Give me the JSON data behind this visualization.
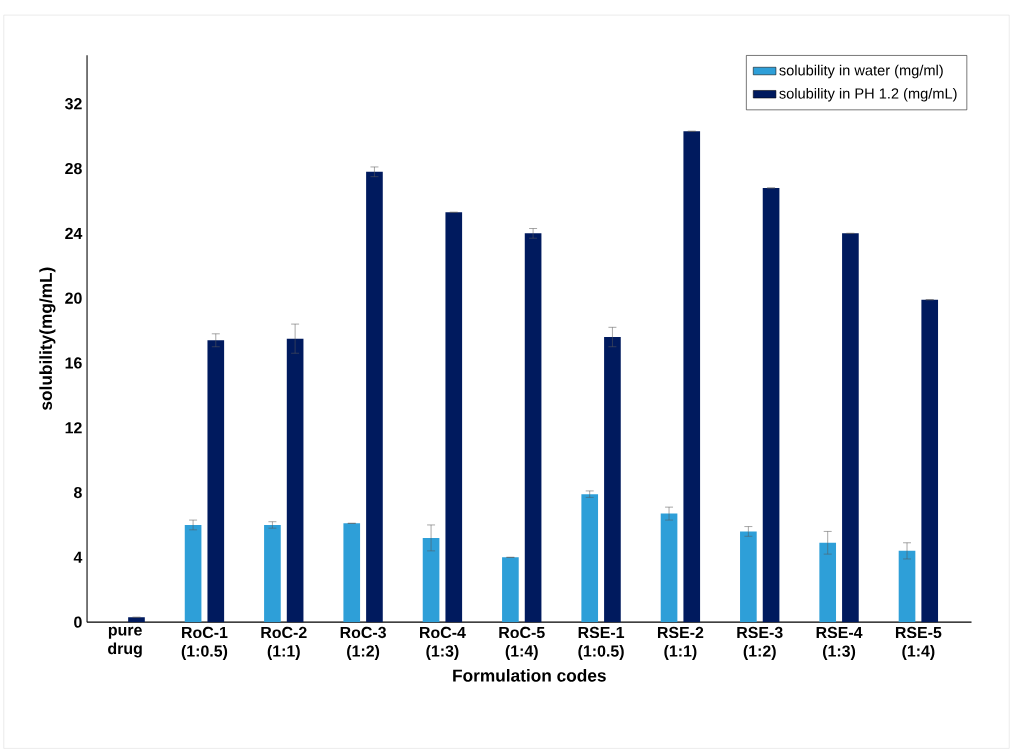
{
  "chart_data": {
    "type": "bar",
    "xlabel": "Formulation codes",
    "ylabel": "solubility(mg/mL)",
    "categories": [
      "pure drug",
      "RoC-1 (1:0.5)",
      "RoC-2 (1:1)",
      "RoC-3 (1:2)",
      "RoC-4 (1:3)",
      "RoC-5 (1:4)",
      "RSE-1 (1:0.5)",
      "RSE-2 (1:1)",
      "RSE-3 (1:2)",
      "RSE-4 (1:3)",
      "RSE-5 (1:4)"
    ],
    "series": [
      {
        "name": "solubility in water (mg/ml)",
        "color": "#2e9fd8",
        "values": [
          null,
          6.0,
          6.0,
          6.1,
          5.2,
          4.0,
          7.9,
          6.7,
          5.6,
          4.9,
          4.4
        ],
        "errors": [
          null,
          0.3,
          0.2,
          null,
          0.8,
          null,
          0.2,
          0.4,
          0.3,
          0.7,
          0.5
        ]
      },
      {
        "name": "solubility in PH 1.2 (mg/mL)",
        "color": "#001a5e",
        "values": [
          0.3,
          17.4,
          17.5,
          27.8,
          25.3,
          24.0,
          17.6,
          30.3,
          26.8,
          24.0,
          19.9
        ],
        "errors": [
          null,
          0.4,
          0.9,
          0.3,
          null,
          0.3,
          0.6,
          null,
          null,
          null,
          null
        ]
      }
    ],
    "ylim": [
      0,
      35
    ],
    "yticks": [
      0,
      4,
      8,
      12,
      16,
      20,
      24,
      28,
      32
    ],
    "grid": false,
    "legend": "top right"
  }
}
